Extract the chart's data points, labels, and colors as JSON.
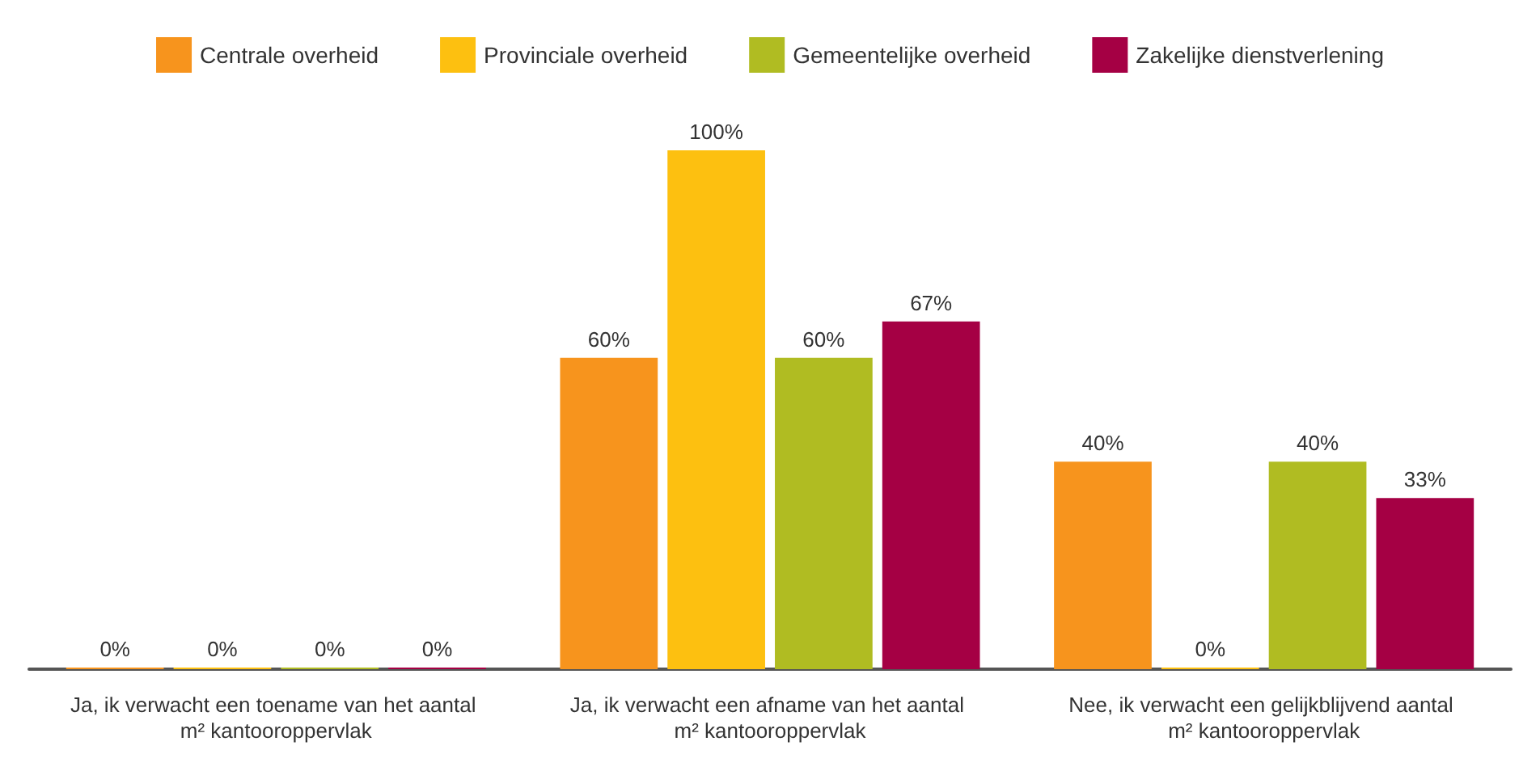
{
  "chart_data": {
    "type": "bar",
    "categories": [
      "Ja, ik verwacht een toename van het aantal m² kantooroppervlak",
      "Ja, ik verwacht een afname van het aantal m² kantooroppervlak",
      "Nee, ik verwacht een gelijkblijvend aantal m² kantooroppervlak"
    ],
    "series": [
      {
        "name": "Centrale overheid",
        "color": "#f7941d",
        "values": [
          0,
          60,
          40
        ],
        "value_labels": [
          "0%",
          "60%",
          "40%"
        ]
      },
      {
        "name": "Provinciale overheid",
        "color": "#fdc010",
        "values": [
          0,
          100,
          0
        ],
        "value_labels": [
          "0%",
          "100%",
          "0%"
        ]
      },
      {
        "name": "Gemeentelijke overheid",
        "color": "#b0bc22",
        "values": [
          0,
          60,
          40
        ],
        "value_labels": [
          "0%",
          "60%",
          "40%"
        ]
      },
      {
        "name": "Zakelijke dienstverlening",
        "color": "#a50044",
        "values": [
          0,
          67,
          33
        ],
        "value_labels": [
          "0%",
          "67%",
          "33%"
        ]
      }
    ],
    "legend": "top",
    "grid": false
  }
}
